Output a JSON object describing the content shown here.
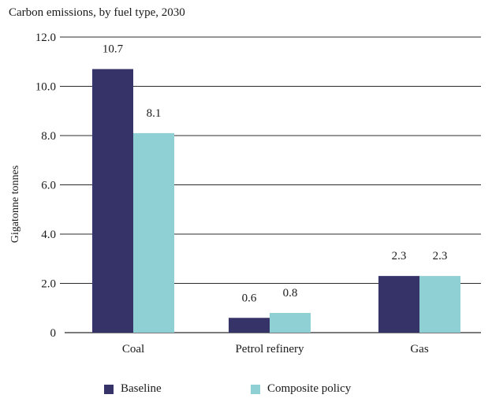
{
  "chart_data": {
    "type": "bar",
    "title": "Carbon emissions, by fuel type, 2030",
    "xlabel": "",
    "ylabel": "Gigatonne tonnes",
    "categories": [
      "Coal",
      "Petrol refinery",
      "Gas"
    ],
    "series": [
      {
        "name": "Baseline",
        "values": [
          10.7,
          0.6,
          2.3
        ],
        "labels": [
          "10.7",
          "0.6",
          "2.3"
        ],
        "color": "#363369"
      },
      {
        "name": "Composite policy",
        "values": [
          8.1,
          0.8,
          2.3
        ],
        "labels": [
          "8.1",
          "0.8",
          "2.3"
        ],
        "color": "#8ed0d3"
      }
    ],
    "ylim": [
      0,
      12
    ],
    "yticks": [
      0,
      2,
      4,
      6,
      8,
      10,
      12
    ],
    "ytick_labels": [
      "0",
      "2.0",
      "4.0",
      "6.0",
      "8.0",
      "10.0",
      "12.0"
    ],
    "grid": true,
    "legend_position": "bottom"
  }
}
